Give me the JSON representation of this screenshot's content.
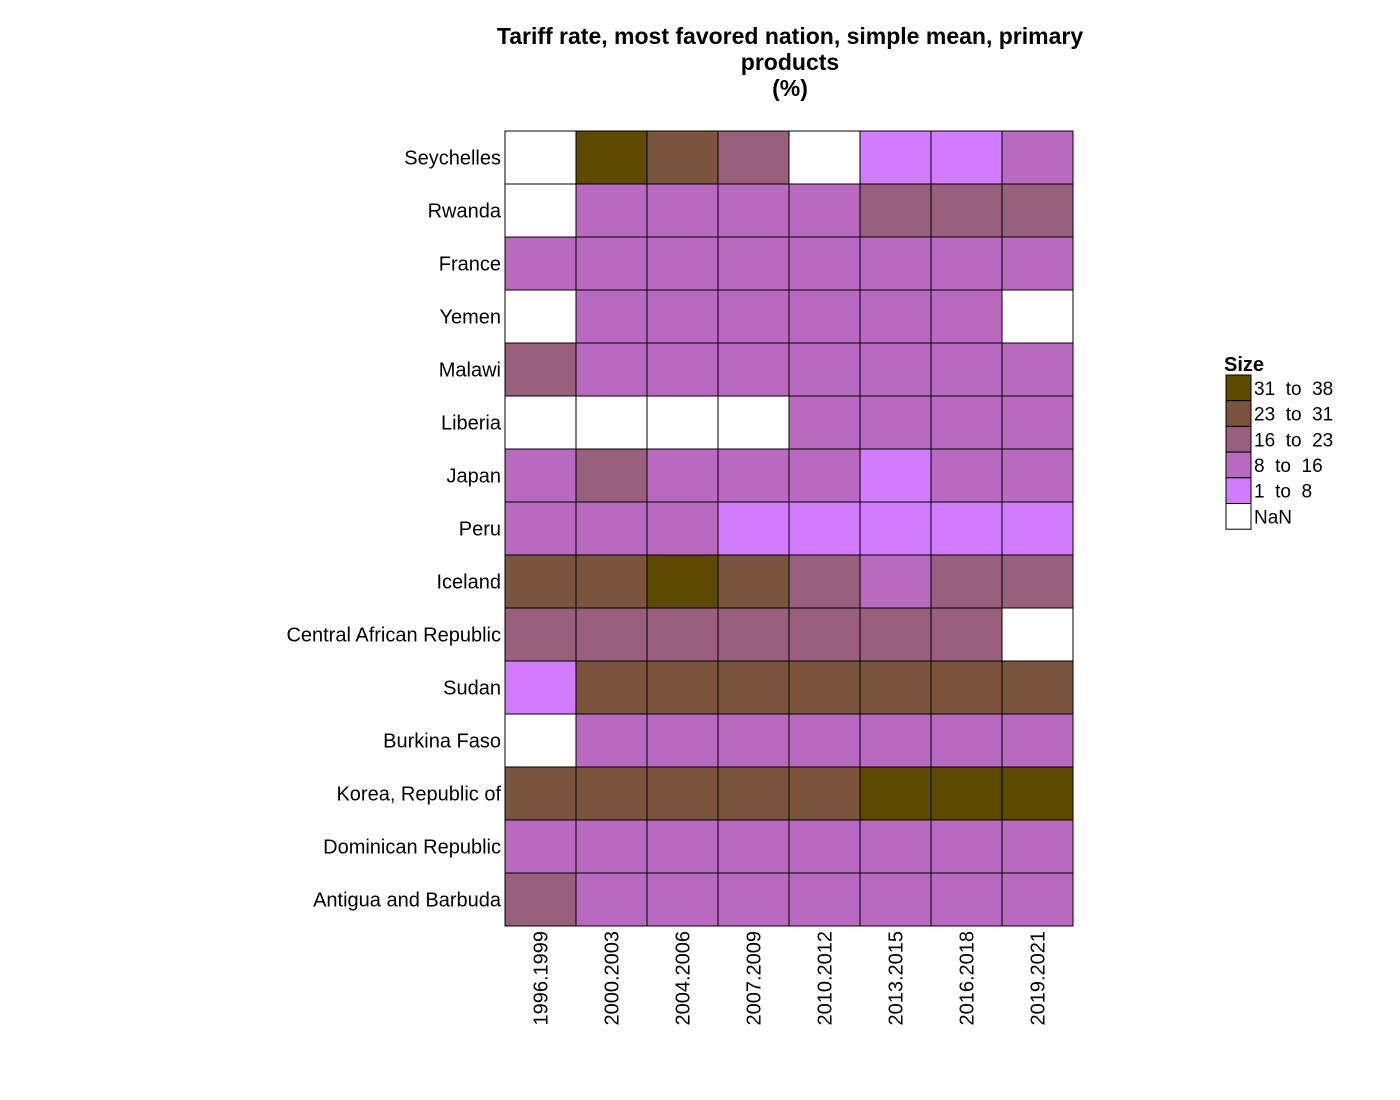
{
  "chart_data": {
    "type": "heatmap",
    "title_lines": [
      "Tariff rate, most favored nation, simple mean, primary",
      "products",
      "(%)"
    ],
    "x": [
      "1996.1999",
      "2000.2003",
      "2004.2006",
      "2007.2009",
      "2010.2012",
      "2013.2015",
      "2016.2018",
      "2019.2021"
    ],
    "y": [
      "Seychelles",
      "Rwanda",
      "France",
      "Yemen",
      "Malawi",
      "Liberia",
      "Japan",
      "Peru",
      "Iceland",
      "Central African Republic",
      "Sudan",
      "Burkina Faso",
      "Korea, Republic of",
      "Dominican Republic",
      "Antigua and Barbuda"
    ],
    "cells": [
      [
        "NaN",
        "31 to 38",
        "23 to 31",
        "16 to 23",
        "NaN",
        "1 to 8",
        "1 to 8",
        "8 to 16"
      ],
      [
        "NaN",
        "8 to 16",
        "8 to 16",
        "8 to 16",
        "8 to 16",
        "16 to 23",
        "16 to 23",
        "16 to 23"
      ],
      [
        "8 to 16",
        "8 to 16",
        "8 to 16",
        "8 to 16",
        "8 to 16",
        "8 to 16",
        "8 to 16",
        "8 to 16"
      ],
      [
        "NaN",
        "8 to 16",
        "8 to 16",
        "8 to 16",
        "8 to 16",
        "8 to 16",
        "8 to 16",
        "NaN"
      ],
      [
        "16 to 23",
        "8 to 16",
        "8 to 16",
        "8 to 16",
        "8 to 16",
        "8 to 16",
        "8 to 16",
        "8 to 16"
      ],
      [
        "NaN",
        "NaN",
        "NaN",
        "NaN",
        "8 to 16",
        "8 to 16",
        "8 to 16",
        "8 to 16"
      ],
      [
        "8 to 16",
        "16 to 23",
        "8 to 16",
        "8 to 16",
        "8 to 16",
        "1 to 8",
        "8 to 16",
        "8 to 16"
      ],
      [
        "8 to 16",
        "8 to 16",
        "8 to 16",
        "1 to 8",
        "1 to 8",
        "1 to 8",
        "1 to 8",
        "1 to 8"
      ],
      [
        "23 to 31",
        "23 to 31",
        "31 to 38",
        "23 to 31",
        "16 to 23",
        "8 to 16",
        "16 to 23",
        "16 to 23"
      ],
      [
        "16 to 23",
        "16 to 23",
        "16 to 23",
        "16 to 23",
        "16 to 23",
        "16 to 23",
        "16 to 23",
        "NaN"
      ],
      [
        "1 to 8",
        "23 to 31",
        "23 to 31",
        "23 to 31",
        "23 to 31",
        "23 to 31",
        "23 to 31",
        "23 to 31"
      ],
      [
        "NaN",
        "8 to 16",
        "8 to 16",
        "8 to 16",
        "8 to 16",
        "8 to 16",
        "8 to 16",
        "8 to 16"
      ],
      [
        "23 to 31",
        "23 to 31",
        "23 to 31",
        "23 to 31",
        "23 to 31",
        "31 to 38",
        "31 to 38",
        "31 to 38"
      ],
      [
        "8 to 16",
        "8 to 16",
        "8 to 16",
        "8 to 16",
        "8 to 16",
        "8 to 16",
        "8 to 16",
        "8 to 16"
      ],
      [
        "16 to 23",
        "8 to 16",
        "8 to 16",
        "8 to 16",
        "8 to 16",
        "8 to 16",
        "8 to 16",
        "8 to 16"
      ]
    ],
    "legend": {
      "title": "Size",
      "placement": "right",
      "items": [
        {
          "label": "31  to  38",
          "key": "31 to 38",
          "color": "#5c4a00"
        },
        {
          "label": "23  to  31",
          "key": "23 to 31",
          "color": "#7a543c"
        },
        {
          "label": "16  to  23",
          "key": "16 to 23",
          "color": "#98607c"
        },
        {
          "label": "8  to  16",
          "key": "8 to 16",
          "color": "#b76ac0"
        },
        {
          "label": "1  to  8",
          "key": "1 to 8",
          "color": "#d07cfc"
        },
        {
          "label": "NaN",
          "key": "NaN",
          "color": "#ffffff"
        }
      ]
    }
  }
}
